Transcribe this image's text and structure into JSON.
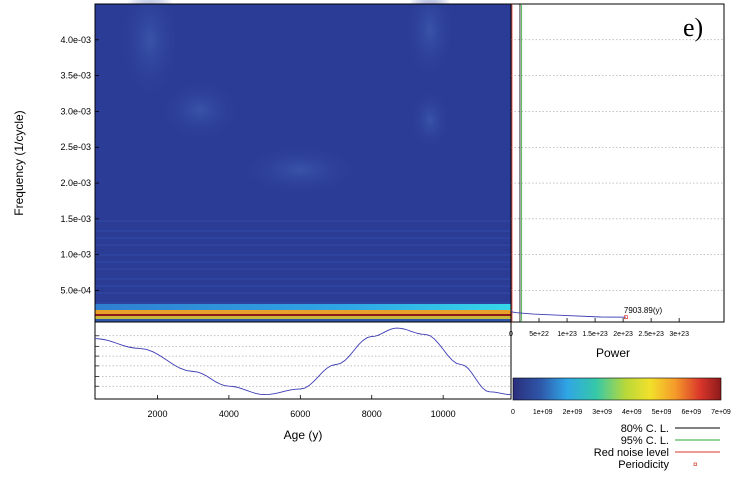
{
  "chart_data": [
    {
      "type": "heatmap",
      "panel": "wavelet-spectrum",
      "panel_label": "e)",
      "ylabel": "Frequency (1/cycle)",
      "xlim": [
        250,
        11900
      ],
      "ylim": [
        6e-05,
        0.0045
      ],
      "y_ticks": [
        {
          "value": 0.0005,
          "label": "5.0e-04"
        },
        {
          "value": 0.001,
          "label": "1.0e-03"
        },
        {
          "value": 0.0015,
          "label": "1.5e-03"
        },
        {
          "value": 0.002,
          "label": "2.0e-03"
        },
        {
          "value": 0.0025,
          "label": "2.5e-03"
        },
        {
          "value": 0.003,
          "label": "3.0e-03"
        },
        {
          "value": 0.0035,
          "label": "3.5e-03"
        },
        {
          "value": 0.004,
          "label": "4.0e-03"
        }
      ],
      "colormap": [
        "#2b2d7c",
        "#2f56a8",
        "#2fa6e6",
        "#36c8a8",
        "#b8d83a",
        "#f2e02b",
        "#f59a2a",
        "#d9362b",
        "#8c1a1a"
      ]
    },
    {
      "type": "line",
      "panel": "time-series",
      "xlabel": "Age (y)",
      "xlim": [
        250,
        11900
      ],
      "x_ticks": [
        2000,
        4000,
        6000,
        8000,
        10000
      ],
      "x": [
        250,
        1500,
        3000,
        4000,
        5000,
        6000,
        7000,
        8000,
        8700,
        9500,
        10500,
        11300,
        11900
      ],
      "y": [
        0.82,
        0.68,
        0.35,
        0.14,
        0.02,
        0.1,
        0.45,
        0.85,
        0.97,
        0.88,
        0.45,
        0.06,
        0.02
      ],
      "grid": true,
      "color": "#3c3cb4"
    },
    {
      "type": "line",
      "panel": "global-power-spectrum",
      "xlabel": "Power",
      "x_ticks": [
        {
          "value": 0,
          "label": "0"
        },
        {
          "value": 5e+22,
          "label": "5e+22"
        },
        {
          "value": 1e+23,
          "label": "1e+23"
        },
        {
          "value": 1.5e+23,
          "label": "1.5e+23"
        },
        {
          "value": 2e+23,
          "label": "2e+23"
        },
        {
          "value": 2.5e+23,
          "label": "2.5e+23"
        },
        {
          "value": 3e+23,
          "label": "3e+23"
        }
      ],
      "xlim": [
        0,
        3.8e+23
      ],
      "grid": true,
      "series": [
        {
          "name": "80% C. L.",
          "color": "#000000"
        },
        {
          "name": "95% C. L.",
          "color": "#2fa82f"
        },
        {
          "name": "Red noise level",
          "color": "#d9362b"
        },
        {
          "name": "Periodicity",
          "color": "#d9362b",
          "marker": "square"
        }
      ],
      "power_curve_x": [
        0,
        2e+21,
        1e+22,
        4e+22,
        1e+23,
        1.6e+23,
        2.05e+23
      ],
      "power_curve_y": [
        0.00022,
        0.0002,
        0.00019,
        0.00017,
        0.00015,
        0.00013,
        0.000127
      ],
      "periodicity_point": {
        "x": 2.05e+23,
        "y": 0.000127
      },
      "periodicity_label": "7903.89(y)",
      "cl80_x": 1.6e+22,
      "cl95_x": 1.9e+22,
      "red_noise_x": 0
    },
    {
      "type": "heatmap",
      "panel": "colorbar",
      "range": [
        0,
        7000000000.0
      ],
      "tick_labels": [
        "0",
        "1e+09",
        "2e+09",
        "3e+09",
        "4e+09",
        "5e+09",
        "6e+09",
        "7e+09"
      ],
      "colors": [
        "#2b2d7c",
        "#2f56a8",
        "#2fa6e6",
        "#36c8a8",
        "#b8d83a",
        "#f2e02b",
        "#f59a2a",
        "#d9362b",
        "#8c1a1a"
      ]
    }
  ]
}
